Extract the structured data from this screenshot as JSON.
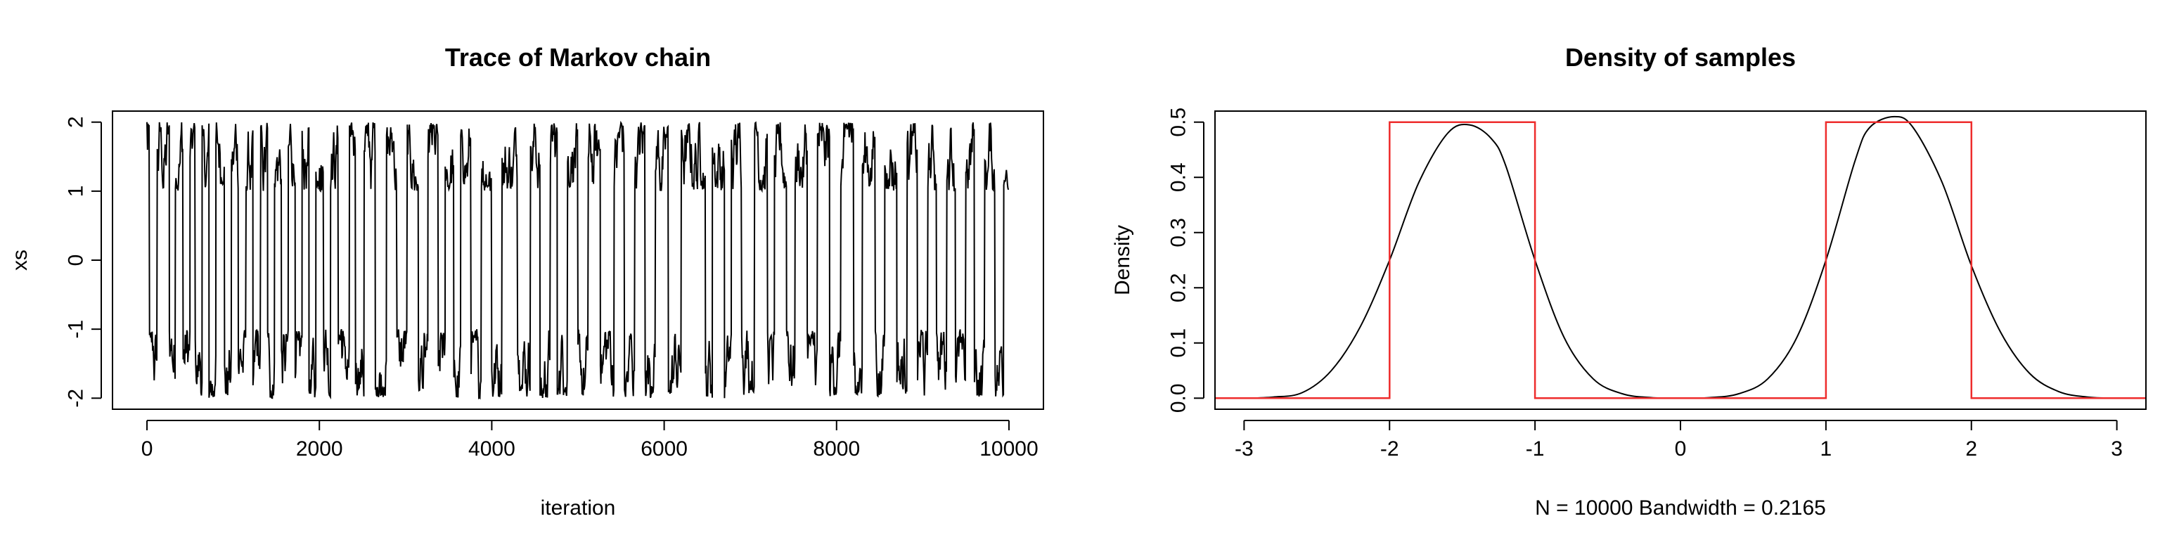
{
  "chart_data": [
    {
      "type": "line",
      "title": "Trace of Markov chain",
      "xlabel": "iteration",
      "ylabel": "xs",
      "xlim": [
        0,
        10000
      ],
      "ylim": [
        -2,
        2
      ],
      "x_ticks": [
        0,
        2000,
        4000,
        6000,
        8000,
        10000
      ],
      "y_ticks": [
        -2,
        -1,
        0,
        1,
        2
      ],
      "x_tick_labels": [
        "0",
        "2000",
        "4000",
        "6000",
        "8000",
        "10000"
      ],
      "y_tick_labels": [
        "-2",
        "-1",
        "0",
        "1",
        "2"
      ],
      "series": [
        {
          "color": "#000000",
          "description_of_shape": "chain jumping between two modes, values in [-2,-1] and [1,2]",
          "mode_switch_iterations": [
            0,
            30,
            120,
            260,
            330,
            420,
            500,
            560,
            640,
            720,
            800,
            900,
            980,
            1060,
            1150,
            1230,
            1320,
            1400,
            1480,
            1560,
            1640,
            1720,
            1800,
            1880,
            1960,
            2050,
            2130,
            2220,
            2350,
            2420,
            2520,
            2650,
            2780,
            2900,
            3020,
            3150,
            3260,
            3380,
            3460,
            3560,
            3640,
            3760,
            3880,
            4000,
            4120,
            4300,
            4450,
            4560,
            4680,
            4760,
            4880,
            5000,
            5120,
            5260,
            5420,
            5540,
            5660,
            5780,
            5900,
            6050,
            6200,
            6480,
            6560,
            6700,
            6780,
            6900,
            7050,
            7200,
            7280,
            7420,
            7520,
            7660,
            7780,
            7920,
            8050,
            8200,
            8300,
            8450,
            8560,
            8700,
            8820,
            8940,
            9060,
            9160,
            9280,
            9380,
            9500,
            9600,
            9720,
            9840,
            9940,
            10000
          ],
          "n_points": 10000
        }
      ]
    },
    {
      "type": "line",
      "title": "Density of samples",
      "xlabel": "N = 10000   Bandwidth = 0.2165",
      "ylabel": "Density",
      "xlim": [
        -3.2,
        3.2
      ],
      "ylim": [
        0,
        0.5
      ],
      "x_ticks": [
        -3,
        -2,
        -1,
        0,
        1,
        2,
        3
      ],
      "y_ticks": [
        0,
        0.1,
        0.2,
        0.3,
        0.4,
        0.5
      ],
      "x_tick_labels": [
        "-3",
        "-2",
        "-1",
        "0",
        "1",
        "2",
        "3"
      ],
      "y_tick_labels": [
        "0.0",
        "0.1",
        "0.2",
        "0.3",
        "0.4",
        "0.5"
      ],
      "series": [
        {
          "color": "#000000",
          "kind": "kernel density estimate",
          "x": [
            -3.2,
            -3.0,
            -2.8,
            -2.6,
            -2.4,
            -2.2,
            -2.0,
            -1.8,
            -1.6,
            -1.45,
            -1.3,
            -1.2,
            -1.0,
            -0.8,
            -0.6,
            -0.4,
            -0.2,
            0.0,
            0.2,
            0.4,
            0.6,
            0.8,
            1.0,
            1.2,
            1.3,
            1.47,
            1.6,
            1.8,
            2.0,
            2.2,
            2.4,
            2.6,
            2.8,
            3.0,
            3.2
          ],
          "y": [
            0.0,
            0.0,
            0.002,
            0.01,
            0.05,
            0.13,
            0.25,
            0.39,
            0.48,
            0.495,
            0.47,
            0.42,
            0.25,
            0.11,
            0.035,
            0.008,
            0.001,
            0.0,
            0.001,
            0.008,
            0.035,
            0.11,
            0.25,
            0.43,
            0.49,
            0.51,
            0.49,
            0.39,
            0.24,
            0.12,
            0.045,
            0.012,
            0.002,
            0.0,
            0.0
          ]
        },
        {
          "color": "#ee2c2c",
          "kind": "true density",
          "x": [
            -3.2,
            -2.0,
            -2.0,
            -1.0,
            -1.0,
            1.0,
            1.0,
            2.0,
            2.0,
            3.2
          ],
          "y": [
            0,
            0,
            0.5,
            0.5,
            0,
            0,
            0.5,
            0.5,
            0,
            0
          ]
        }
      ]
    }
  ]
}
